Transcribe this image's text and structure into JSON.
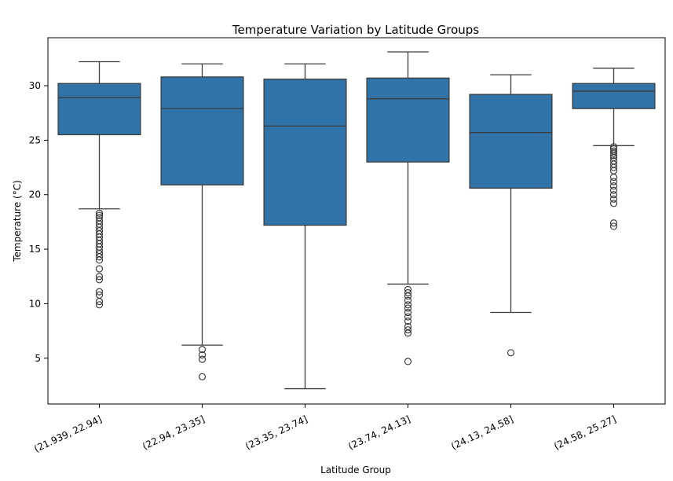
{
  "chart_data": {
    "type": "box",
    "title": "Temperature Variation by Latitude Groups",
    "xlabel": "Latitude Group",
    "ylabel": "Temperature (°C)",
    "ylim": [
      0.8,
      34.4
    ],
    "yticks": [
      5,
      10,
      15,
      20,
      25,
      30
    ],
    "grid": false,
    "color": "#2f73a8",
    "categories": [
      "(21.939, 22.94]",
      "(22.94, 23.35]",
      "(23.35, 23.74]",
      "(23.74, 24.13]",
      "(24.13, 24.58]",
      "(24.58, 25.27]"
    ],
    "boxes": [
      {
        "whisker_low": 18.7,
        "q1": 25.5,
        "median": 28.9,
        "q3": 30.2,
        "whisker_high": 32.2,
        "outliers": [
          18.3,
          18.1,
          17.9,
          17.6,
          17.3,
          17.0,
          16.7,
          16.4,
          16.1,
          15.8,
          15.5,
          15.2,
          14.9,
          14.6,
          14.3,
          14.0,
          13.2,
          12.5,
          12.2,
          11.1,
          10.8,
          10.2,
          9.9
        ]
      },
      {
        "whisker_low": 6.2,
        "q1": 20.9,
        "median": 27.9,
        "q3": 30.8,
        "whisker_high": 32.0,
        "outliers": [
          5.8,
          5.3,
          4.9,
          3.3
        ]
      },
      {
        "whisker_low": 2.2,
        "q1": 17.2,
        "median": 26.3,
        "q3": 30.6,
        "whisker_high": 32.0,
        "outliers": []
      },
      {
        "whisker_low": 11.8,
        "q1": 23.0,
        "median": 28.8,
        "q3": 30.7,
        "whisker_high": 33.1,
        "outliers": [
          11.3,
          11.0,
          10.7,
          10.3,
          9.9,
          9.6,
          9.2,
          8.8,
          8.4,
          7.9,
          7.6,
          7.3,
          4.7
        ]
      },
      {
        "whisker_low": 9.2,
        "q1": 20.6,
        "median": 25.7,
        "q3": 29.2,
        "whisker_high": 31.0,
        "outliers": [
          5.5
        ]
      },
      {
        "whisker_low": 24.5,
        "q1": 27.9,
        "median": 29.5,
        "q3": 30.2,
        "whisker_high": 31.6,
        "outliers": [
          24.4,
          24.2,
          24.0,
          23.8,
          23.6,
          23.4,
          23.1,
          22.8,
          22.5,
          22.2,
          21.6,
          21.2,
          20.8,
          20.4,
          20.0,
          19.6,
          19.2,
          17.4,
          17.1
        ]
      }
    ]
  }
}
